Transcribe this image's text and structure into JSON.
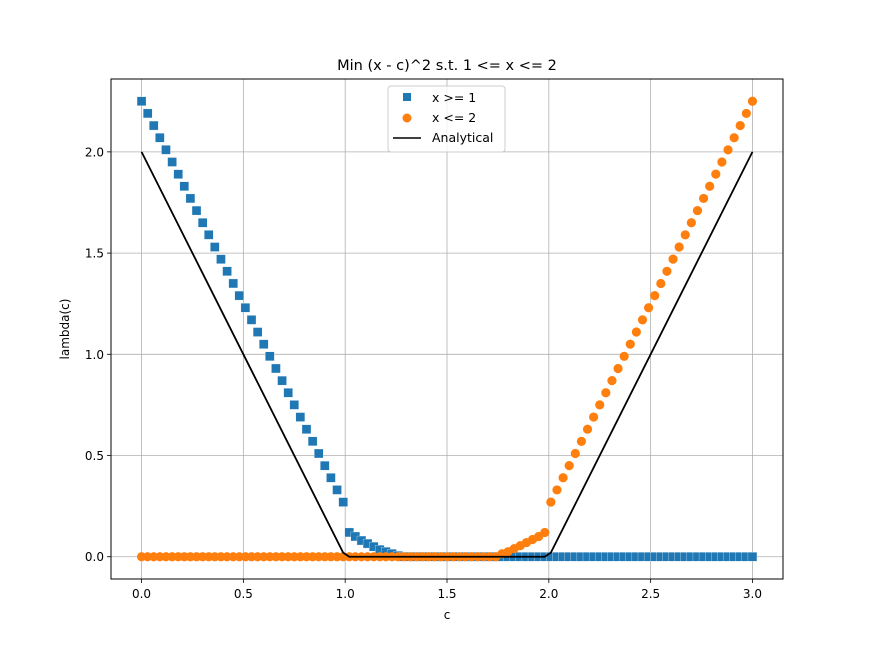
{
  "chart_data": {
    "type": "scatter",
    "title": "Min (x - c)^2 s.t. 1 <= x <= 2",
    "xlabel": "c",
    "ylabel": "lambda(c)",
    "xlim": [
      -0.15,
      3.15
    ],
    "ylim": [
      -0.11,
      2.36
    ],
    "xticks": [
      "0.0",
      "0.5",
      "1.0",
      "1.5",
      "2.0",
      "2.5",
      "3.0"
    ],
    "yticks": [
      "0.0",
      "0.5",
      "1.0",
      "1.5",
      "2.0"
    ],
    "grid": true,
    "legend_position": "upper center",
    "x": [
      0.0,
      0.03,
      0.06,
      0.09,
      0.12,
      0.15,
      0.18,
      0.21,
      0.24,
      0.27,
      0.3,
      0.33,
      0.36,
      0.39,
      0.42,
      0.45,
      0.48,
      0.51,
      0.54,
      0.57,
      0.6,
      0.63,
      0.66,
      0.69,
      0.72,
      0.75,
      0.78,
      0.81,
      0.84,
      0.87,
      0.9,
      0.93,
      0.96,
      0.99,
      1.02,
      1.05,
      1.08,
      1.11,
      1.14,
      1.17,
      1.2,
      1.23,
      1.26,
      1.29,
      1.32,
      1.35,
      1.38,
      1.41,
      1.44,
      1.47,
      1.5,
      1.53,
      1.56,
      1.59,
      1.62,
      1.65,
      1.68,
      1.71,
      1.74,
      1.77,
      1.8,
      1.83,
      1.86,
      1.89,
      1.92,
      1.95,
      1.98,
      2.01,
      2.04,
      2.07,
      2.1,
      2.13,
      2.16,
      2.19,
      2.22,
      2.25,
      2.28,
      2.31,
      2.34,
      2.37,
      2.4,
      2.43,
      2.46,
      2.49,
      2.52,
      2.55,
      2.58,
      2.61,
      2.64,
      2.67,
      2.7,
      2.73,
      2.76,
      2.79,
      2.82,
      2.85,
      2.88,
      2.91,
      2.94,
      2.97,
      3.0
    ],
    "series": [
      {
        "name": "x >= 1",
        "marker": "square",
        "color": "#1f77b4",
        "values": [
          2.25,
          2.19,
          2.13,
          2.07,
          2.01,
          1.95,
          1.89,
          1.83,
          1.77,
          1.71,
          1.65,
          1.59,
          1.53,
          1.47,
          1.41,
          1.35,
          1.29,
          1.23,
          1.17,
          1.11,
          1.05,
          0.99,
          0.93,
          0.87,
          0.81,
          0.75,
          0.69,
          0.63,
          0.57,
          0.51,
          0.45,
          0.39,
          0.33,
          0.27,
          0.12,
          0.1,
          0.08,
          0.065,
          0.05,
          0.035,
          0.025,
          0.015,
          0.005,
          0,
          0,
          0,
          0,
          0,
          0,
          0,
          0,
          0,
          0,
          0,
          0,
          0,
          0,
          0,
          0,
          0,
          0,
          0,
          0,
          0,
          0,
          0,
          0,
          0,
          0,
          0,
          0,
          0,
          0,
          0,
          0,
          0,
          0,
          0,
          0,
          0,
          0,
          0,
          0,
          0,
          0,
          0,
          0,
          0,
          0,
          0,
          0,
          0,
          0,
          0,
          0,
          0,
          0,
          0,
          0,
          0,
          0
        ]
      },
      {
        "name": "x <= 2",
        "marker": "circle",
        "color": "#ff7f0e",
        "values": [
          0,
          0,
          0,
          0,
          0,
          0,
          0,
          0,
          0,
          0,
          0,
          0,
          0,
          0,
          0,
          0,
          0,
          0,
          0,
          0,
          0,
          0,
          0,
          0,
          0,
          0,
          0,
          0,
          0,
          0,
          0,
          0,
          0,
          0,
          0,
          0,
          0,
          0,
          0,
          0,
          0,
          0,
          0,
          0,
          0,
          0,
          0,
          0,
          0,
          0,
          0,
          0,
          0,
          0,
          0,
          0,
          0,
          0,
          0,
          0.015,
          0.025,
          0.04,
          0.055,
          0.07,
          0.085,
          0.1,
          0.12,
          0.27,
          0.33,
          0.39,
          0.45,
          0.51,
          0.57,
          0.63,
          0.69,
          0.75,
          0.81,
          0.87,
          0.93,
          0.99,
          1.05,
          1.11,
          1.17,
          1.23,
          1.29,
          1.35,
          1.41,
          1.47,
          1.53,
          1.59,
          1.65,
          1.71,
          1.77,
          1.83,
          1.89,
          1.95,
          2.01,
          2.07,
          2.13,
          2.19,
          2.25
        ]
      },
      {
        "name": "Analytical",
        "marker": "line",
        "color": "#000000",
        "x": [
          0.0,
          0.99,
          1.02,
          1.98,
          2.01,
          3.0
        ],
        "values": [
          2.0,
          0.02,
          0.0,
          0.0,
          0.02,
          2.0
        ]
      }
    ]
  },
  "legend": {
    "items": [
      {
        "label": "x >= 1"
      },
      {
        "label": "x <= 2"
      },
      {
        "label": "Analytical"
      }
    ]
  }
}
